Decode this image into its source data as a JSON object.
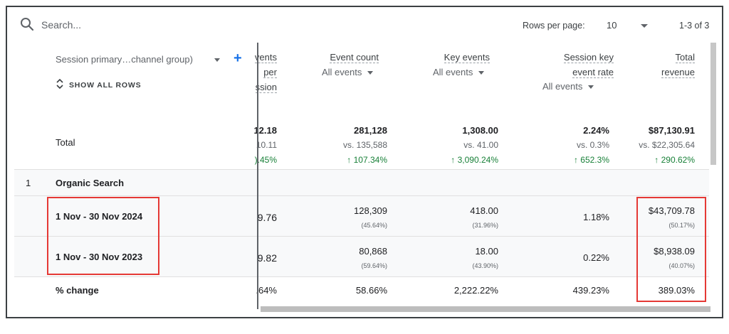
{
  "toolbar": {
    "search_placeholder": "Search...",
    "rows_per_page_label": "Rows per page:",
    "rows_per_page_value": "10",
    "page_range": "1-3 of 3"
  },
  "dimension": {
    "header": "Session primary…channel group)",
    "show_all_rows": "SHOW ALL ROWS"
  },
  "columns": {
    "c0": {
      "l1": "vents",
      "l2": "per",
      "l3": "ssion"
    },
    "c1": {
      "label": "Event count",
      "sub": "All events"
    },
    "c2": {
      "label": "Key events",
      "sub": "All events"
    },
    "c3": {
      "l1": "Session key",
      "l2": "event rate",
      "sub": "All events"
    },
    "c4": {
      "l1": "Total",
      "l2": "revenue"
    }
  },
  "total": {
    "label": "Total",
    "c0": {
      "value": "12.18",
      "vs": "10.11",
      "change": ").45%"
    },
    "c1": {
      "value": "281,128",
      "vs": "vs. 135,588",
      "change": "↑ 107.34%"
    },
    "c2": {
      "value": "1,308.00",
      "vs": "vs. 41.00",
      "change": "↑ 3,090.24%"
    },
    "c3": {
      "value": "2.24%",
      "vs": "vs. 0.3%",
      "change": "↑ 652.3%"
    },
    "c4": {
      "value": "$87,130.91",
      "vs": "vs. $22,305.64",
      "change": "↑ 290.62%"
    }
  },
  "group": {
    "index": "1",
    "label": "Organic Search"
  },
  "rows": [
    {
      "label": "1 Nov - 30 Nov 2024",
      "c0": "9.76",
      "c1": {
        "value": "128,309",
        "pct": "(45.64%)"
      },
      "c2": {
        "value": "418.00",
        "pct": "(31.96%)"
      },
      "c3": "1.18%",
      "c4": {
        "value": "$43,709.78",
        "pct": "(50.17%)"
      }
    },
    {
      "label": "1 Nov - 30 Nov 2023",
      "c0": "9.82",
      "c1": {
        "value": "80,868",
        "pct": "(59.64%)"
      },
      "c2": {
        "value": "18.00",
        "pct": "(43.90%)"
      },
      "c3": "0.22%",
      "c4": {
        "value": "$8,938.09",
        "pct": "(40.07%)"
      }
    },
    {
      "label": "% change",
      "c0": ".64%",
      "c1": "58.66%",
      "c2": "2,222.22%",
      "c3": "439.23%",
      "c4": "389.03%"
    }
  ],
  "colors": {
    "accent": "#1a73e8",
    "positive": "#188038",
    "highlight": "#e53935"
  }
}
